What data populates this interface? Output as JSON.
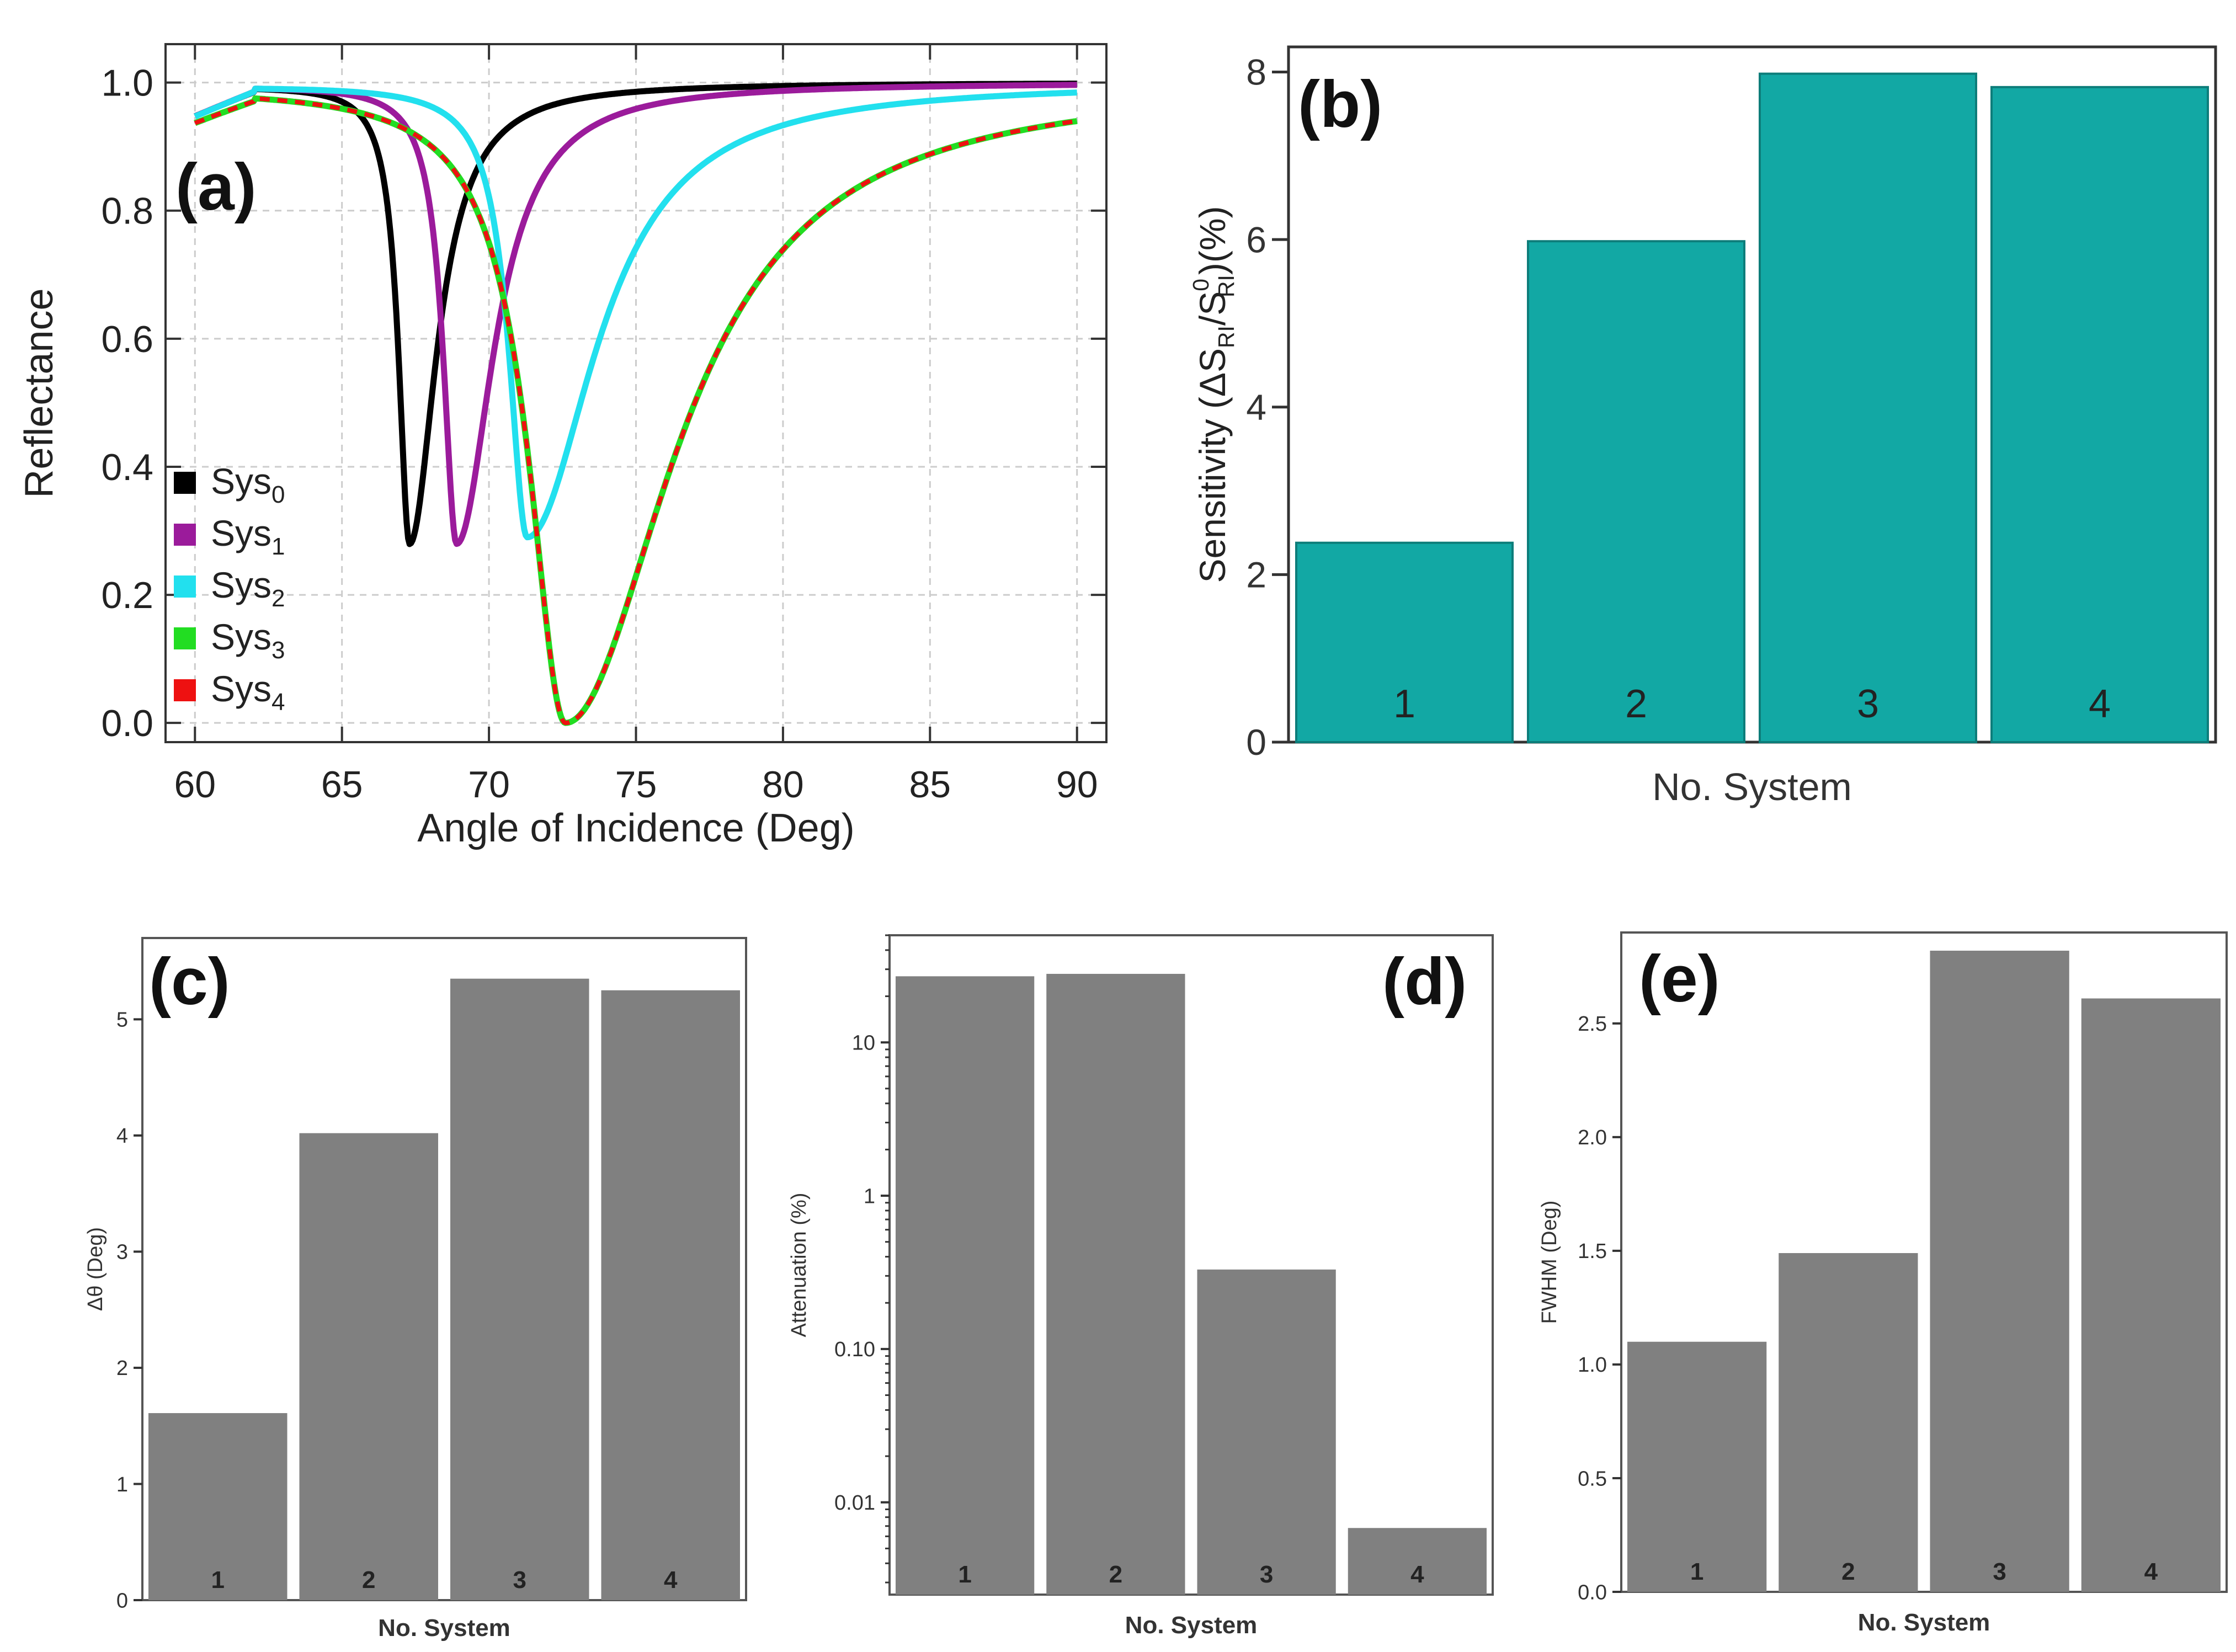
{
  "figure": {
    "description": "Five-panel SPR figure"
  },
  "colors": {
    "sys0": "#000000",
    "sys1": "#9b1b9b",
    "sys2": "#22e0ee",
    "sys3": "#22dd22",
    "sys4": "#ee1111",
    "teal": "#12a8a4",
    "gray": "#808080",
    "grid": "#cccccc",
    "axis": "#333333"
  },
  "chart_data": [
    {
      "id": "a",
      "type": "line",
      "panel_label": "(a)",
      "xlabel": "Angle of Incidence (Deg)",
      "ylabel": "Reflectance",
      "xlim": [
        59,
        91
      ],
      "ylim": [
        -0.03,
        1.06
      ],
      "xticks": [
        60,
        65,
        70,
        75,
        80,
        85,
        90
      ],
      "yticks": [
        "0.0",
        "0.2",
        "0.4",
        "0.6",
        "0.8",
        "1.0"
      ],
      "grid": true,
      "legend_position": "bottom-left",
      "series": [
        {
          "key": "sys0",
          "name": "Sys",
          "subscript": "0",
          "resonance_angle": 67.3,
          "min_reflectance": 0.28,
          "width_left": 0.45,
          "width_right": 1.1
        },
        {
          "key": "sys1",
          "name": "Sys",
          "subscript": "1",
          "resonance_angle": 68.9,
          "min_reflectance": 0.28,
          "width_left": 0.55,
          "width_right": 1.5
        },
        {
          "key": "sys2",
          "name": "Sys",
          "subscript": "2",
          "resonance_angle": 71.3,
          "min_reflectance": 0.29,
          "width_left": 0.75,
          "width_right": 2.8
        },
        {
          "key": "sys3",
          "name": "Sys",
          "subscript": "3",
          "resonance_angle": 72.6,
          "min_reflectance": 0.0,
          "width_left": 1.5,
          "width_right": 4.4
        },
        {
          "key": "sys4",
          "name": "Sys",
          "subscript": "4",
          "resonance_angle": 72.6,
          "min_reflectance": 0.0,
          "width_left": 1.5,
          "width_right": 4.4,
          "dashed": true
        }
      ]
    },
    {
      "id": "b",
      "type": "bar",
      "panel_label": "(b)",
      "xlabel": "No. System",
      "ylabel_parts": [
        "Sensitivity (ΔS",
        "RI",
        "/S",
        "0",
        "RI",
        ")(%)"
      ],
      "categories": [
        "1",
        "2",
        "3",
        "4"
      ],
      "values": [
        2.38,
        5.98,
        7.98,
        7.82
      ],
      "ylim": [
        0,
        8.3
      ],
      "yticks": [
        "0",
        "2",
        "4",
        "6",
        "8"
      ],
      "color_key": "teal"
    },
    {
      "id": "c",
      "type": "bar",
      "panel_label": "(c)",
      "xlabel": "No. System",
      "ylabel": "Δθ (Deg)",
      "categories": [
        "1",
        "2",
        "3",
        "4"
      ],
      "values": [
        1.61,
        4.02,
        5.35,
        5.25
      ],
      "ylim": [
        0,
        5.7
      ],
      "yticks": [
        "0",
        "1",
        "2",
        "3",
        "4",
        "5"
      ],
      "color_key": "gray"
    },
    {
      "id": "d",
      "type": "bar",
      "panel_label": "(d)",
      "xlabel": "No. System",
      "ylabel": "Attenuation (%)",
      "yscale": "log",
      "categories": [
        "1",
        "2",
        "3",
        "4"
      ],
      "values": [
        27,
        28,
        0.33,
        0.0068
      ],
      "ylim": [
        0.0025,
        50
      ],
      "yticks": [
        "0.01",
        "0.10",
        "1",
        "10"
      ],
      "ytick_values": [
        0.01,
        0.1,
        1,
        10
      ],
      "color_key": "gray"
    },
    {
      "id": "e",
      "type": "bar",
      "panel_label": "(e)",
      "xlabel": "No. System",
      "ylabel": "FWHM (Deg)",
      "categories": [
        "1",
        "2",
        "3",
        "4"
      ],
      "values": [
        1.1,
        1.49,
        2.82,
        2.61
      ],
      "ylim": [
        0,
        2.9
      ],
      "yticks": [
        "0.0",
        "0.5",
        "1.0",
        "1.5",
        "2.0",
        "2.5"
      ],
      "color_key": "gray"
    }
  ]
}
